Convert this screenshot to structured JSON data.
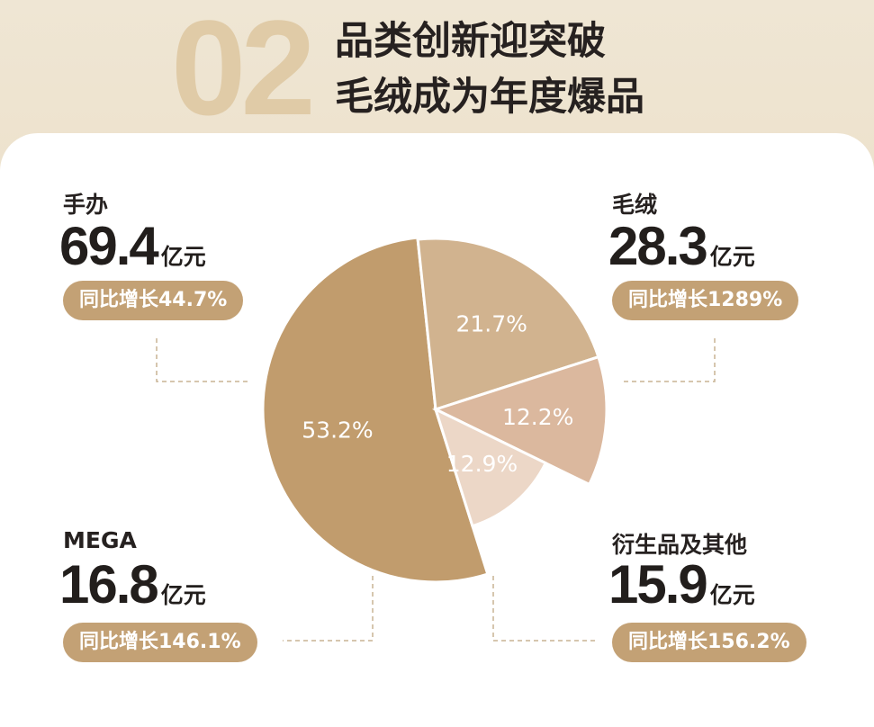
{
  "header": {
    "number": "02",
    "title_line1": "品类创新迎突破",
    "title_line2": "毛绒成为年度爆品"
  },
  "colors": {
    "slice_figures": "#c19c6d",
    "slice_plush": "#d1b38f",
    "slice_derivatives": "#dbb89e",
    "slice_mega": "#ecd7c7",
    "pill": "#c3a175",
    "connector": "#c8b393"
  },
  "chart_data": {
    "type": "pie",
    "unit": "亿元",
    "slices": [
      {
        "category": "手办",
        "value": 69.4,
        "percent": 53.2,
        "growth": "同比增长44.7%"
      },
      {
        "category": "毛绒",
        "value": 28.3,
        "percent": 21.7,
        "growth": "同比增长1289%"
      },
      {
        "category": "衍生品及其他",
        "value": 15.9,
        "percent": 12.2,
        "growth": "同比增长156.2%"
      },
      {
        "category": "MEGA",
        "value": 16.8,
        "percent": 12.9,
        "growth": "同比增长146.1%"
      }
    ],
    "pct_labels": [
      "53.2%",
      "21.7%",
      "12.2%",
      "12.9%"
    ],
    "value_labels": [
      "69.4",
      "28.3",
      "15.9",
      "16.8"
    ]
  }
}
